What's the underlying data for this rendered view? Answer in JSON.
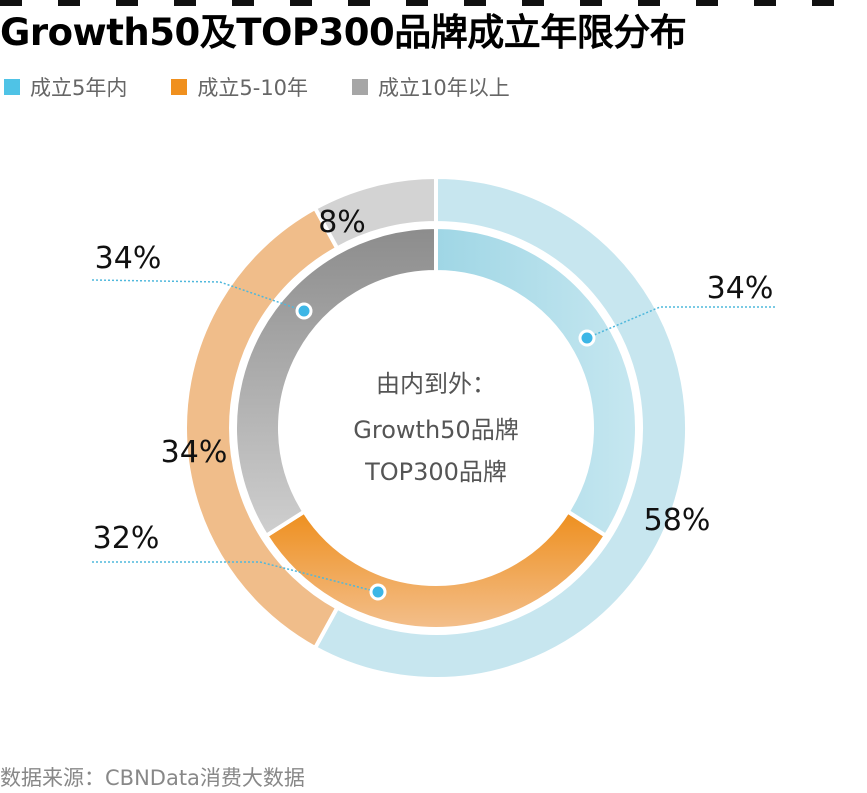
{
  "title": "Growth50及TOP300品牌成立年限分布",
  "legend": [
    {
      "label": "成立5年内",
      "color": "#4fc3e6"
    },
    {
      "label": "成立5-10年",
      "color": "#f0901e"
    },
    {
      "label": "成立10年以上",
      "color": "#a6a6a6"
    }
  ],
  "center_text": [
    "由内到外：",
    "Growth50品牌",
    "TOP300品牌"
  ],
  "source": "数据来源：CBNData消费大数据",
  "chart_data": {
    "type": "pie",
    "title": "Growth50及TOP300品牌成立年限分布",
    "categories": [
      "成立5年内",
      "成立5-10年",
      "成立10年以上"
    ],
    "series": [
      {
        "name": "Growth50品牌",
        "ring": "inner",
        "values": [
          34,
          32,
          34
        ],
        "labels": [
          "34%",
          "32%",
          "34%"
        ]
      },
      {
        "name": "TOP300品牌",
        "ring": "outer",
        "values": [
          58,
          34,
          8
        ],
        "labels": [
          "58%",
          "34%",
          "8%"
        ]
      }
    ],
    "legend_position": "top-left"
  }
}
